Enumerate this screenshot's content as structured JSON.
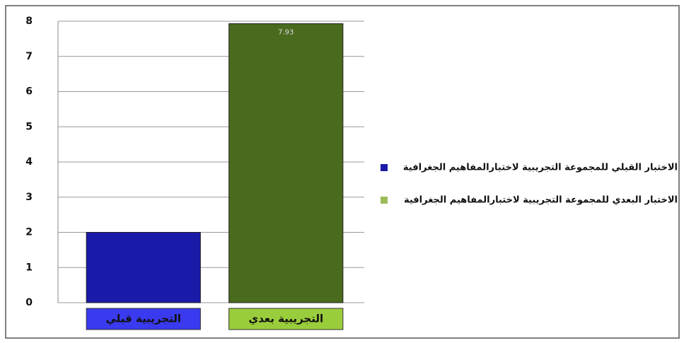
{
  "chart_data": {
    "type": "bar",
    "categories": [
      "التجريبية قبلي",
      "التجريبية بعدي"
    ],
    "category_colors": [
      "#3a3af0",
      "#9acd3c"
    ],
    "series": [
      {
        "name": "الاختبار القبلي للمجموعة التجريبية لاختبارالمفاهيم الجغرافية",
        "color": "#1a1aa8",
        "values": [
          2,
          null
        ],
        "data_labels": false
      },
      {
        "name": "الاختبار البعدي للمجموعة التجريبية لاختبارالمفاهيم الجغرافية",
        "color": "#4a6a1e",
        "legend_color": "#9bbb59",
        "values": [
          null,
          7.93
        ],
        "data_labels": true
      }
    ],
    "ylim": [
      0,
      8
    ],
    "yticks": [
      0,
      1,
      2,
      3,
      4,
      5,
      6,
      7,
      8
    ],
    "grid": true,
    "legend": "right"
  }
}
